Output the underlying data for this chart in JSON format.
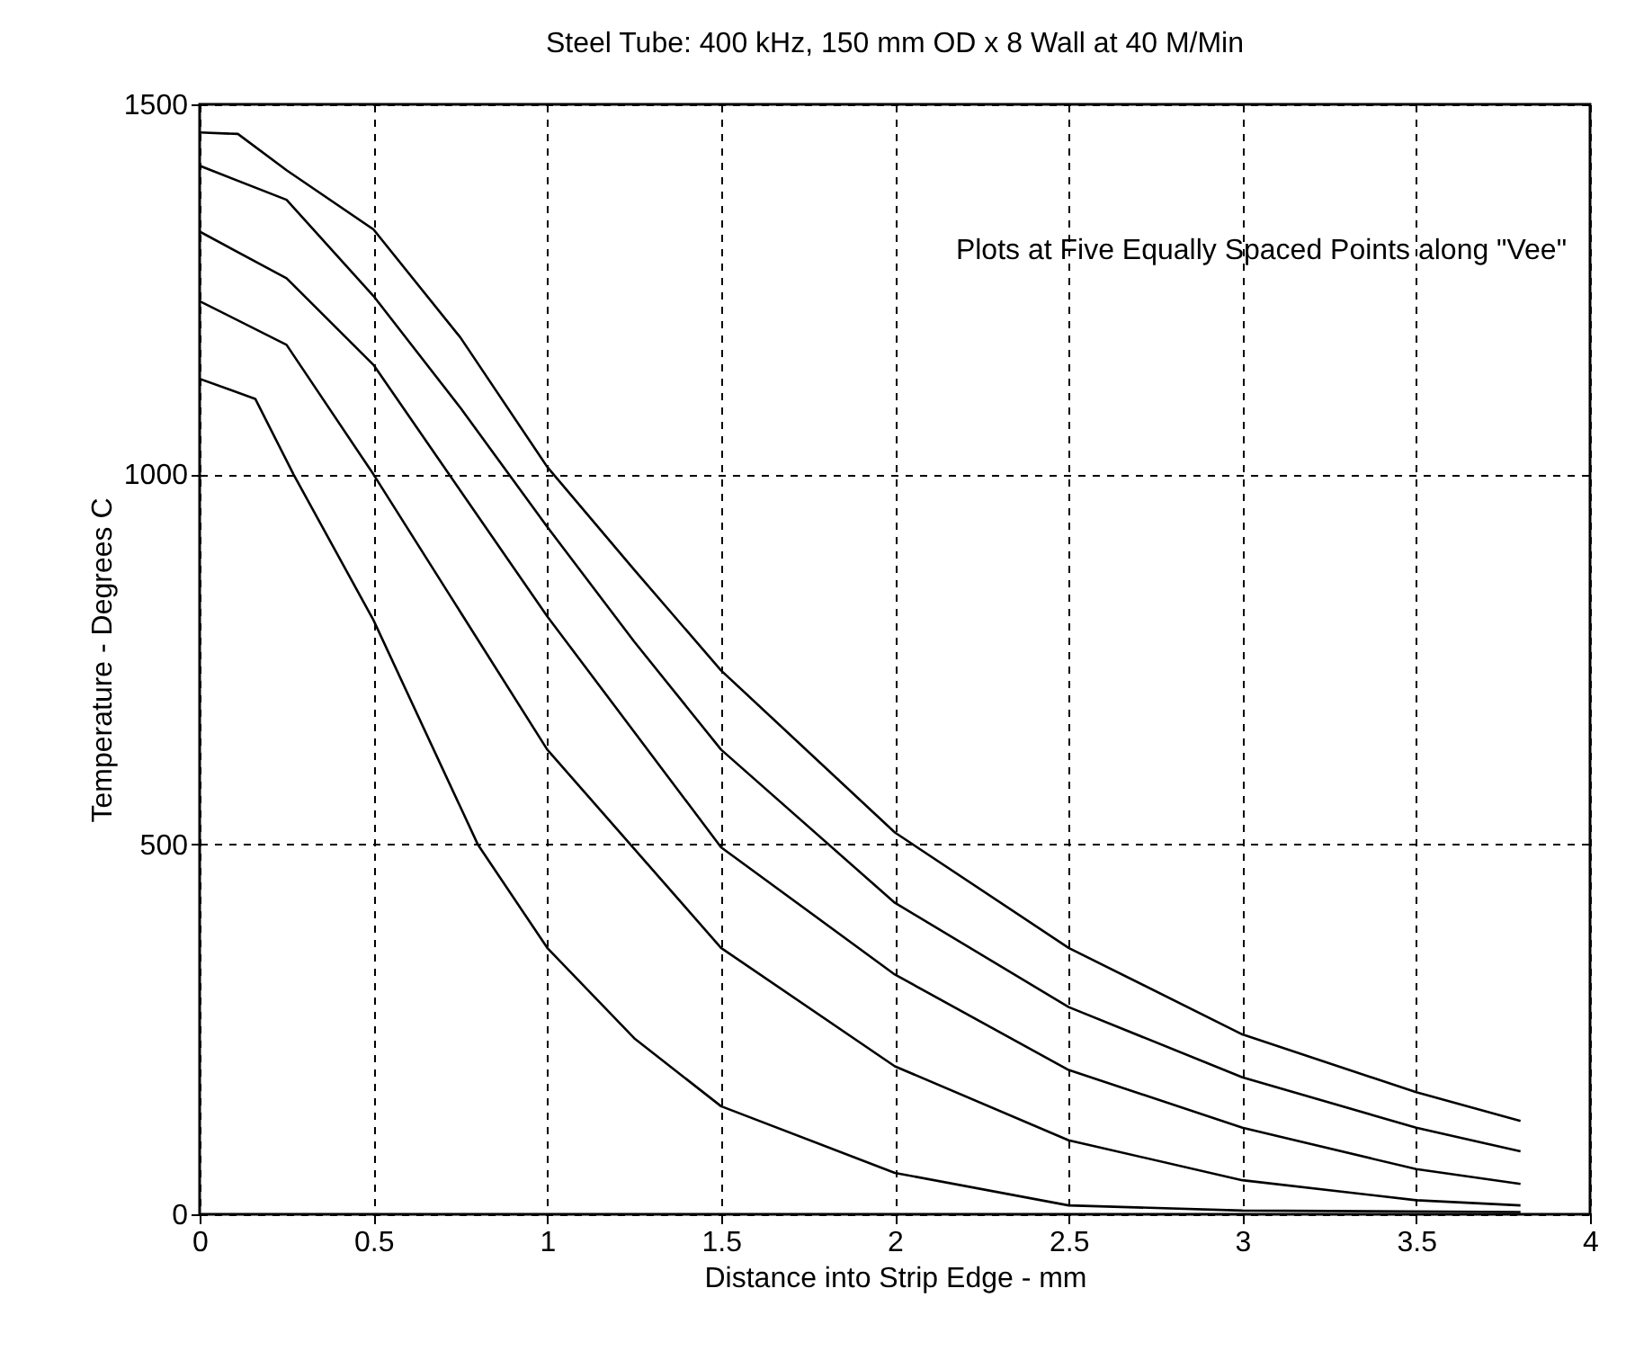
{
  "chart_data": {
    "type": "line",
    "title": "Steel Tube: 400 kHz, 150 mm OD x 8 Wall at 40 M/Min",
    "xlabel": "Distance into Strip Edge - mm",
    "ylabel": "Temperature - Degrees C",
    "annotations": [
      "Plots at Five Equally Spaced Points along \"Vee\""
    ],
    "xlim": [
      0,
      4
    ],
    "xticks": [
      0,
      0.5,
      1,
      1.5,
      2,
      2.5,
      3,
      3.5,
      4
    ],
    "ylim": [
      0,
      1500
    ],
    "yticks": [
      0,
      500,
      1000,
      1500
    ],
    "grid": true,
    "line_style": "solid",
    "series": [
      {
        "color": "#000000",
        "x": [
          0,
          0.11,
          0.25,
          0.5,
          0.75,
          1,
          1.25,
          1.5,
          2,
          2.5,
          3,
          3.5,
          3.8
        ],
        "values": [
          1462,
          1460,
          1411,
          1331,
          1185,
          1010,
          871,
          735,
          516,
          360,
          243,
          165,
          126
        ]
      },
      {
        "color": "#000000",
        "x": [
          0,
          0.25,
          0.5,
          0.75,
          1,
          1.25,
          1.5,
          2,
          2.5,
          3,
          3.5,
          3.8
        ],
        "values": [
          1417,
          1371,
          1241,
          1090,
          929,
          774,
          628,
          421,
          280,
          185,
          117,
          85
        ]
      },
      {
        "color": "#000000",
        "x": [
          0,
          0.25,
          0.5,
          0.75,
          1,
          1.5,
          2,
          2.5,
          3,
          3.5,
          3.8
        ],
        "values": [
          1328,
          1265,
          1148,
          978,
          808,
          496,
          324,
          195,
          117,
          61,
          41
        ]
      },
      {
        "color": "#000000",
        "x": [
          0,
          0.25,
          0.5,
          1,
          1.5,
          2,
          2.5,
          3,
          3.5,
          3.8
        ],
        "values": [
          1234,
          1175,
          1000,
          628,
          360,
          200,
          100,
          46,
          19,
          12
        ]
      },
      {
        "color": "#000000",
        "x": [
          0,
          0.16,
          0.27,
          0.5,
          0.8,
          1,
          1.25,
          1.5,
          2,
          2.5,
          3,
          3.8
        ],
        "values": [
          1129,
          1102,
          1000,
          803,
          500,
          360,
          238,
          146,
          56,
          12,
          5,
          3
        ]
      }
    ]
  }
}
